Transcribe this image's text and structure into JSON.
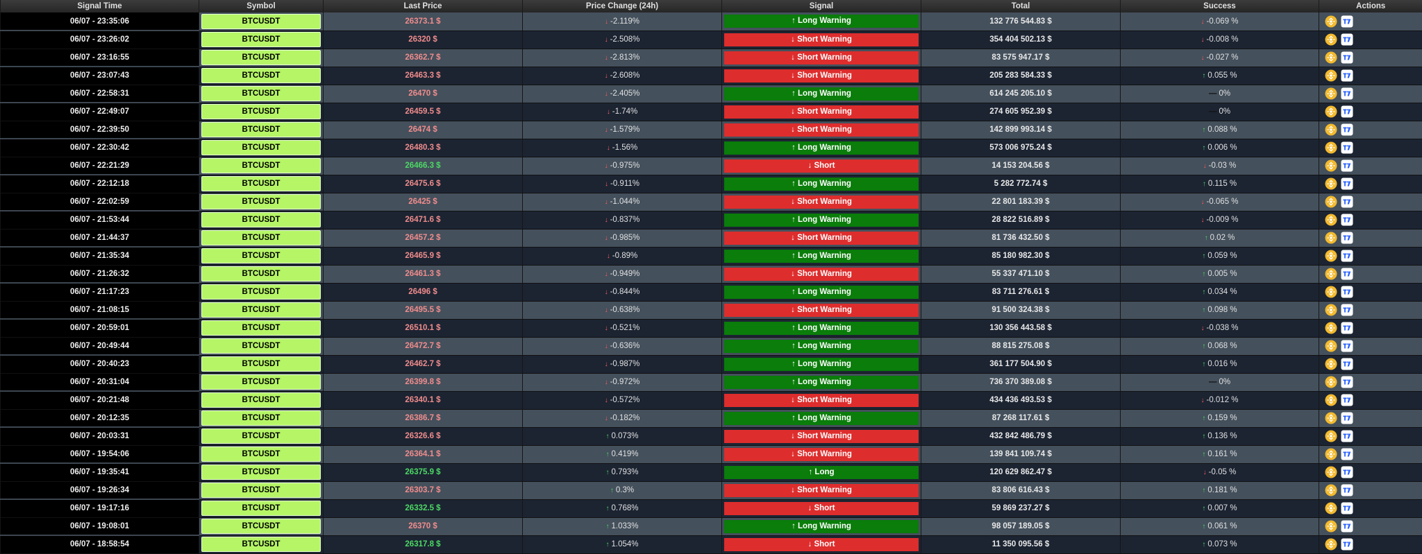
{
  "headers": [
    "Signal Time",
    "Symbol",
    "Last Price",
    "Price Change (24h)",
    "Signal",
    "Total",
    "Success",
    "Actions"
  ],
  "colors": {
    "long": "#0a7d0a",
    "short": "#de2d2d",
    "symbol_bg": "#b5f566",
    "row_even": "#44505c",
    "row_odd": "#1c2432"
  },
  "action_icons": [
    "binance-icon",
    "tradingview-icon"
  ],
  "rows": [
    {
      "time": "06/07 - 23:35:06",
      "symbol": "BTCUSDT",
      "price": "26373.1 $",
      "price_color": "red",
      "change_dir": "down",
      "change": "-2.119%",
      "signal_type": "long",
      "signal": "Long Warning",
      "total": "132 776 544.83 $",
      "success_dir": "down",
      "success": "-0.069 %"
    },
    {
      "time": "06/07 - 23:26:02",
      "symbol": "BTCUSDT",
      "price": "26320 $",
      "price_color": "red",
      "change_dir": "down",
      "change": "-2.508%",
      "signal_type": "short",
      "signal": "Short Warning",
      "total": "354 404 502.13 $",
      "success_dir": "down",
      "success": "-0.008 %"
    },
    {
      "time": "06/07 - 23:16:55",
      "symbol": "BTCUSDT",
      "price": "26362.7 $",
      "price_color": "red",
      "change_dir": "down",
      "change": "-2.813%",
      "signal_type": "short",
      "signal": "Short Warning",
      "total": "83 575 947.17 $",
      "success_dir": "down",
      "success": "-0.027 %"
    },
    {
      "time": "06/07 - 23:07:43",
      "symbol": "BTCUSDT",
      "price": "26463.3 $",
      "price_color": "red",
      "change_dir": "down",
      "change": "-2.608%",
      "signal_type": "short",
      "signal": "Short Warning",
      "total": "205 283 584.33 $",
      "success_dir": "up",
      "success": "0.055 %"
    },
    {
      "time": "06/07 - 22:58:31",
      "symbol": "BTCUSDT",
      "price": "26470 $",
      "price_color": "red",
      "change_dir": "down",
      "change": "-2.405%",
      "signal_type": "long",
      "signal": "Long Warning",
      "total": "614 245 205.10 $",
      "success_dir": "flat",
      "success": "0%"
    },
    {
      "time": "06/07 - 22:49:07",
      "symbol": "BTCUSDT",
      "price": "26459.5 $",
      "price_color": "red",
      "change_dir": "down",
      "change": "-1.74%",
      "signal_type": "short",
      "signal": "Short Warning",
      "total": "274 605 952.39 $",
      "success_dir": "flat",
      "success": "0%"
    },
    {
      "time": "06/07 - 22:39:50",
      "symbol": "BTCUSDT",
      "price": "26474 $",
      "price_color": "red",
      "change_dir": "down",
      "change": "-1.579%",
      "signal_type": "short",
      "signal": "Short Warning",
      "total": "142 899 993.14 $",
      "success_dir": "up",
      "success": "0.088 %"
    },
    {
      "time": "06/07 - 22:30:42",
      "symbol": "BTCUSDT",
      "price": "26480.3 $",
      "price_color": "red",
      "change_dir": "down",
      "change": "-1.56%",
      "signal_type": "long",
      "signal": "Long Warning",
      "total": "573 006 975.24 $",
      "success_dir": "up",
      "success": "0.006 %"
    },
    {
      "time": "06/07 - 22:21:29",
      "symbol": "BTCUSDT",
      "price": "26466.3 $",
      "price_color": "green",
      "change_dir": "down",
      "change": "-0.975%",
      "signal_type": "short",
      "signal": "Short",
      "total": "14 153 204.56 $",
      "success_dir": "down",
      "success": "-0.03 %"
    },
    {
      "time": "06/07 - 22:12:18",
      "symbol": "BTCUSDT",
      "price": "26475.6 $",
      "price_color": "red",
      "change_dir": "down",
      "change": "-0.911%",
      "signal_type": "long",
      "signal": "Long Warning",
      "total": "5 282 772.74 $",
      "success_dir": "up",
      "success": "0.115 %"
    },
    {
      "time": "06/07 - 22:02:59",
      "symbol": "BTCUSDT",
      "price": "26425 $",
      "price_color": "red",
      "change_dir": "down",
      "change": "-1.044%",
      "signal_type": "short",
      "signal": "Short Warning",
      "total": "22 801 183.39 $",
      "success_dir": "down",
      "success": "-0.065 %"
    },
    {
      "time": "06/07 - 21:53:44",
      "symbol": "BTCUSDT",
      "price": "26471.6 $",
      "price_color": "red",
      "change_dir": "down",
      "change": "-0.837%",
      "signal_type": "long",
      "signal": "Long Warning",
      "total": "28 822 516.89 $",
      "success_dir": "down",
      "success": "-0.009 %"
    },
    {
      "time": "06/07 - 21:44:37",
      "symbol": "BTCUSDT",
      "price": "26457.2 $",
      "price_color": "red",
      "change_dir": "down",
      "change": "-0.985%",
      "signal_type": "short",
      "signal": "Short Warning",
      "total": "81 736 432.50 $",
      "success_dir": "up",
      "success": "0.02 %"
    },
    {
      "time": "06/07 - 21:35:34",
      "symbol": "BTCUSDT",
      "price": "26465.9 $",
      "price_color": "red",
      "change_dir": "down",
      "change": "-0.89%",
      "signal_type": "long",
      "signal": "Long Warning",
      "total": "85 180 982.30 $",
      "success_dir": "up",
      "success": "0.059 %"
    },
    {
      "time": "06/07 - 21:26:32",
      "symbol": "BTCUSDT",
      "price": "26461.3 $",
      "price_color": "red",
      "change_dir": "down",
      "change": "-0.949%",
      "signal_type": "short",
      "signal": "Short Warning",
      "total": "55 337 471.10 $",
      "success_dir": "up",
      "success": "0.005 %"
    },
    {
      "time": "06/07 - 21:17:23",
      "symbol": "BTCUSDT",
      "price": "26496 $",
      "price_color": "red",
      "change_dir": "down",
      "change": "-0.844%",
      "signal_type": "long",
      "signal": "Long Warning",
      "total": "83 711 276.61 $",
      "success_dir": "up",
      "success": "0.034 %"
    },
    {
      "time": "06/07 - 21:08:15",
      "symbol": "BTCUSDT",
      "price": "26495.5 $",
      "price_color": "red",
      "change_dir": "down",
      "change": "-0.638%",
      "signal_type": "short",
      "signal": "Short Warning",
      "total": "91 500 324.38 $",
      "success_dir": "up",
      "success": "0.098 %"
    },
    {
      "time": "06/07 - 20:59:01",
      "symbol": "BTCUSDT",
      "price": "26510.1 $",
      "price_color": "red",
      "change_dir": "down",
      "change": "-0.521%",
      "signal_type": "long",
      "signal": "Long Warning",
      "total": "130 356 443.58 $",
      "success_dir": "down",
      "success": "-0.038 %"
    },
    {
      "time": "06/07 - 20:49:44",
      "symbol": "BTCUSDT",
      "price": "26472.7 $",
      "price_color": "red",
      "change_dir": "down",
      "change": "-0.636%",
      "signal_type": "long",
      "signal": "Long Warning",
      "total": "88 815 275.08 $",
      "success_dir": "up",
      "success": "0.068 %"
    },
    {
      "time": "06/07 - 20:40:23",
      "symbol": "BTCUSDT",
      "price": "26462.7 $",
      "price_color": "red",
      "change_dir": "down",
      "change": "-0.987%",
      "signal_type": "long",
      "signal": "Long Warning",
      "total": "361 177 504.90 $",
      "success_dir": "up",
      "success": "0.016 %"
    },
    {
      "time": "06/07 - 20:31:04",
      "symbol": "BTCUSDT",
      "price": "26399.8 $",
      "price_color": "red",
      "change_dir": "down",
      "change": "-0.972%",
      "signal_type": "long",
      "signal": "Long Warning",
      "total": "736 370 389.08 $",
      "success_dir": "flat",
      "success": "0%"
    },
    {
      "time": "06/07 - 20:21:48",
      "symbol": "BTCUSDT",
      "price": "26340.1 $",
      "price_color": "red",
      "change_dir": "down",
      "change": "-0.572%",
      "signal_type": "short",
      "signal": "Short Warning",
      "total": "434 436 493.53 $",
      "success_dir": "down",
      "success": "-0.012 %"
    },
    {
      "time": "06/07 - 20:12:35",
      "symbol": "BTCUSDT",
      "price": "26386.7 $",
      "price_color": "red",
      "change_dir": "down",
      "change": "-0.182%",
      "signal_type": "long",
      "signal": "Long Warning",
      "total": "87 268 117.61 $",
      "success_dir": "up",
      "success": "0.159 %"
    },
    {
      "time": "06/07 - 20:03:31",
      "symbol": "BTCUSDT",
      "price": "26326.6 $",
      "price_color": "red",
      "change_dir": "up",
      "change": "0.073%",
      "signal_type": "short",
      "signal": "Short Warning",
      "total": "432 842 486.79 $",
      "success_dir": "up",
      "success": "0.136 %"
    },
    {
      "time": "06/07 - 19:54:06",
      "symbol": "BTCUSDT",
      "price": "26364.1 $",
      "price_color": "red",
      "change_dir": "up",
      "change": "0.419%",
      "signal_type": "short",
      "signal": "Short Warning",
      "total": "139 841 109.74 $",
      "success_dir": "up",
      "success": "0.161 %"
    },
    {
      "time": "06/07 - 19:35:41",
      "symbol": "BTCUSDT",
      "price": "26375.9 $",
      "price_color": "green",
      "change_dir": "up",
      "change": "0.793%",
      "signal_type": "long",
      "signal": "Long",
      "total": "120 629 862.47 $",
      "success_dir": "down",
      "success": "-0.05 %"
    },
    {
      "time": "06/07 - 19:26:34",
      "symbol": "BTCUSDT",
      "price": "26303.7 $",
      "price_color": "red",
      "change_dir": "up",
      "change": "0.3%",
      "signal_type": "short",
      "signal": "Short Warning",
      "total": "83 806 616.43 $",
      "success_dir": "up",
      "success": "0.181 %"
    },
    {
      "time": "06/07 - 19:17:16",
      "symbol": "BTCUSDT",
      "price": "26332.5 $",
      "price_color": "green",
      "change_dir": "up",
      "change": "0.768%",
      "signal_type": "short",
      "signal": "Short",
      "total": "59 869 237.27 $",
      "success_dir": "up",
      "success": "0.007 %"
    },
    {
      "time": "06/07 - 19:08:01",
      "symbol": "BTCUSDT",
      "price": "26370 $",
      "price_color": "red",
      "change_dir": "up",
      "change": "1.033%",
      "signal_type": "long",
      "signal": "Long Warning",
      "total": "98 057 189.05 $",
      "success_dir": "up",
      "success": "0.061 %"
    },
    {
      "time": "06/07 - 18:58:54",
      "symbol": "BTCUSDT",
      "price": "26317.8 $",
      "price_color": "green",
      "change_dir": "up",
      "change": "1.054%",
      "signal_type": "short",
      "signal": "Short",
      "total": "11 350 095.56 $",
      "success_dir": "up",
      "success": "0.073 %"
    }
  ]
}
